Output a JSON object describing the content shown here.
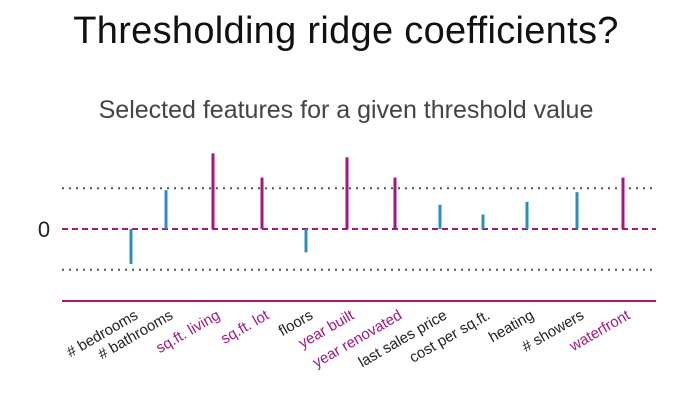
{
  "slide": {
    "title": "Thresholding ridge coefficients?",
    "subtitle": "Selected features for a given threshold value"
  },
  "chart_data": {
    "type": "bar",
    "zero_label": "0",
    "threshold": 0.42,
    "ylim": [
      -0.7,
      1.3
    ],
    "colors": {
      "selected": "#a3177f",
      "not_selected": "#2a8fc0"
    },
    "categories": [
      "# bedrooms",
      "# bathrooms",
      "sq.ft. living",
      "sq.ft. lot",
      "floors",
      "year built",
      "year renovated",
      "last sales price",
      "cost per sq.ft.",
      "heating",
      "# showers",
      "waterfront"
    ],
    "values": [
      -0.36,
      0.4,
      0.78,
      0.53,
      -0.24,
      0.74,
      0.53,
      0.25,
      0.15,
      0.28,
      0.38,
      0.53
    ],
    "selected": [
      false,
      false,
      true,
      true,
      false,
      true,
      true,
      false,
      false,
      false,
      false,
      true
    ]
  }
}
